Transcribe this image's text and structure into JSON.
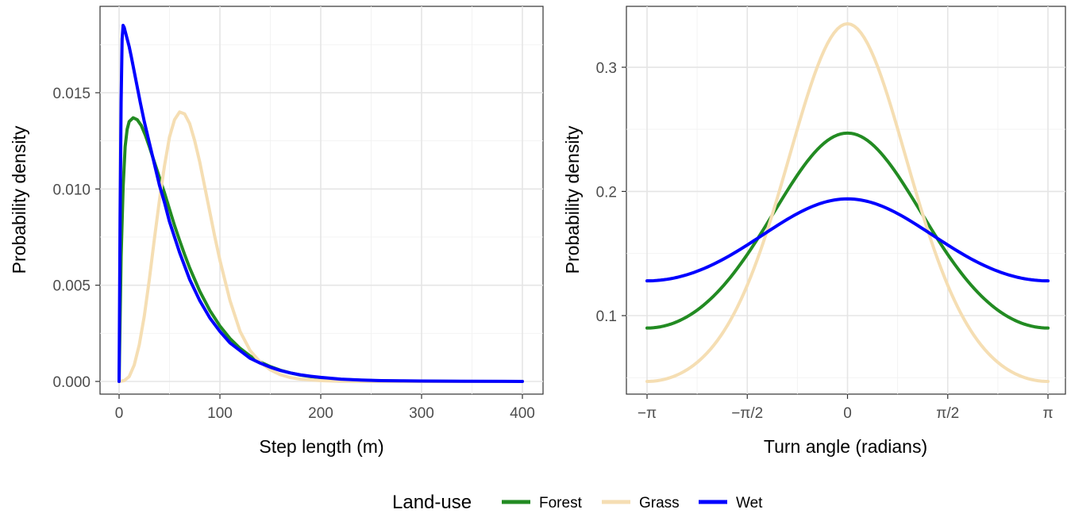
{
  "chart_data": [
    {
      "type": "line",
      "xlabel": "Step length (m)",
      "ylabel": "Probability density",
      "xlim": [
        0,
        400
      ],
      "ylim": [
        0,
        0.0185
      ],
      "x_ticks": [
        0,
        100,
        200,
        300,
        400
      ],
      "x_tick_labels": [
        "0",
        "100",
        "200",
        "300",
        "400"
      ],
      "y_ticks": [
        0,
        0.005,
        0.01,
        0.015
      ],
      "y_tick_labels": [
        "0.000",
        "0.005",
        "0.010",
        "0.015"
      ],
      "grid": true,
      "series": [
        {
          "name": "Forest",
          "color": "#228B22",
          "x": [
            0,
            2,
            4,
            6,
            8,
            10,
            14,
            18,
            22,
            26,
            30,
            35,
            40,
            45,
            50,
            55,
            60,
            65,
            70,
            80,
            90,
            100,
            110,
            120,
            130,
            140,
            150,
            160,
            170,
            180,
            190,
            200,
            220,
            240,
            260,
            280,
            300,
            340,
            400
          ],
          "y": [
            0,
            0.0065,
            0.0101,
            0.0122,
            0.0131,
            0.0135,
            0.0137,
            0.0136,
            0.0133,
            0.0128,
            0.0122,
            0.0114,
            0.0106,
            0.0098,
            0.00895,
            0.0081,
            0.00733,
            0.00659,
            0.0059,
            0.00469,
            0.00369,
            0.00288,
            0.00223,
            0.00172,
            0.00132,
            0.00101,
            0.00077,
            0.00058,
            0.00044,
            0.00033,
            0.00025,
            0.00019,
            0.00011,
            6e-05,
            3e-05,
            2e-05,
            1e-05,
            0,
            0
          ]
        },
        {
          "name": "Grass",
          "color": "#F5DEB3",
          "x": [
            0,
            5,
            10,
            15,
            20,
            25,
            30,
            35,
            40,
            45,
            50,
            55,
            60,
            65,
            70,
            75,
            80,
            85,
            90,
            95,
            100,
            110,
            120,
            130,
            140,
            150,
            160,
            170,
            180,
            200,
            220,
            240,
            260,
            300,
            400
          ],
          "y": [
            0,
            4e-05,
            0.00025,
            0.00085,
            0.0019,
            0.0034,
            0.0053,
            0.0074,
            0.0094,
            0.0112,
            0.0127,
            0.0136,
            0.014,
            0.0139,
            0.0134,
            0.0125,
            0.0114,
            0.0101,
            0.0088,
            0.0075,
            0.0063,
            0.0042,
            0.0026,
            0.0016,
            0.001,
            0.0006,
            0.00035,
            0.0002,
            0.00012,
            4e-05,
            1e-05,
            0,
            0,
            0,
            0
          ]
        },
        {
          "name": "Wet",
          "color": "#0000FF",
          "x": [
            0,
            1,
            2,
            3,
            4,
            5,
            6,
            7,
            8,
            10,
            12,
            15,
            18,
            21,
            25,
            30,
            35,
            40,
            45,
            50,
            55,
            60,
            65,
            70,
            80,
            90,
            100,
            110,
            120,
            130,
            140,
            150,
            160,
            170,
            180,
            190,
            200,
            220,
            240,
            260,
            280,
            300,
            340,
            400
          ],
          "y": [
            0,
            0.0085,
            0.0145,
            0.0178,
            0.0185,
            0.0184,
            0.0182,
            0.018,
            0.0178,
            0.0174,
            0.0169,
            0.0161,
            0.0153,
            0.0145,
            0.0135,
            0.0124,
            0.0113,
            0.0102,
            0.0093,
            0.0083,
            0.0075,
            0.0067,
            0.006,
            0.0053,
            0.0042,
            0.0033,
            0.0026,
            0.002,
            0.0016,
            0.0012,
            0.00095,
            0.00074,
            0.00057,
            0.00044,
            0.00034,
            0.00027,
            0.00021,
            0.00012,
            7e-05,
            4e-05,
            3e-05,
            2e-05,
            1e-05,
            0
          ]
        }
      ]
    },
    {
      "type": "line",
      "xlabel": "Turn angle (radians)",
      "ylabel": "Probability density",
      "xlim": [
        -3.14159,
        3.14159
      ],
      "ylim": [
        0.047,
        0.335
      ],
      "x_ticks": [
        -3.14159,
        -1.5708,
        0,
        1.5708,
        3.14159
      ],
      "x_tick_labels": [
        "−π",
        "−π/2",
        "0",
        "π/2",
        "π"
      ],
      "y_ticks": [
        0.1,
        0.2,
        0.3
      ],
      "y_tick_labels": [
        "0.1",
        "0.2",
        "0.3"
      ],
      "grid": true,
      "series": [
        {
          "name": "Forest",
          "color": "#228B22",
          "mean": 0,
          "concentration": 0.5,
          "peak": 0.247,
          "trough": 0.09
        },
        {
          "name": "Grass",
          "color": "#F5DEB3",
          "mean": 0,
          "concentration": 1.0,
          "peak": 0.335,
          "trough": 0.047
        },
        {
          "name": "Wet",
          "color": "#0000FF",
          "mean": 0,
          "concentration": 0.25,
          "peak": 0.194,
          "trough": 0.128
        }
      ]
    }
  ],
  "legend": {
    "title": "Land-use",
    "placement": "bottom",
    "items": [
      {
        "label": "Forest",
        "color": "#228B22"
      },
      {
        "label": "Grass",
        "color": "#F5DEB3"
      },
      {
        "label": "Wet",
        "color": "#0000FF"
      }
    ]
  }
}
